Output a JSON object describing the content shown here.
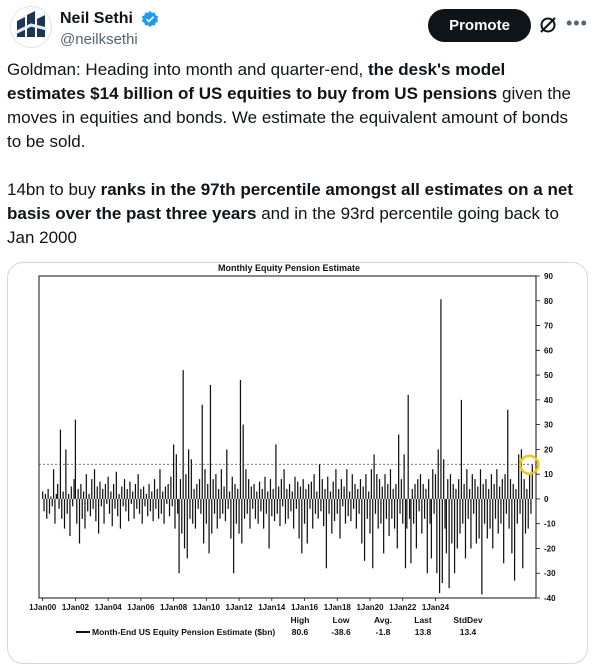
{
  "author": {
    "name": "Neil Sethi",
    "handle": "@neilksethi",
    "avatar_icon": "logo-avatar"
  },
  "actions": {
    "promote_label": "Promote",
    "grok_icon": "grok-icon",
    "more_icon": "more-icon"
  },
  "tweet": {
    "p1_a": "Goldman: Heading into month and quarter-end, ",
    "p1_b": "the desk's model estimates $14 billion of US equities to buy from US pensions",
    "p1_c": " given the moves in equities and bonds. We estimate the equivalent amount of bonds to be sold.",
    "p2_a": "14bn to buy ",
    "p2_b": "ranks in the 97th percentile amongst all estimates on a net basis over the past three years",
    "p2_c": " and in the 93rd percentile going back to Jan 2000"
  },
  "chart_data": {
    "type": "bar",
    "title": "Monthly Equity Pension Estimate",
    "ylim": [
      -40,
      90
    ],
    "yticks": [
      "90",
      "80",
      "70",
      "60",
      "50",
      "40",
      "30",
      "20",
      "10",
      "0",
      "-10",
      "-20",
      "-30",
      "-40"
    ],
    "x_tick_labels": [
      "1Jan00",
      "1Jan02",
      "1Jan04",
      "1Jan06",
      "1Jan08",
      "1Jan10",
      "1Jan12",
      "1Jan14",
      "1Jan16",
      "1Jan18",
      "1Jan20",
      "1Jan22",
      "1Jan24"
    ],
    "x_start": "2000-01",
    "reference_line": 14,
    "legend": {
      "series_label": "Month-End US Equity Pension Estimate ($bn)",
      "stats": [
        {
          "label": "High",
          "value": "80.6"
        },
        {
          "label": "Low",
          "value": "-38.6"
        },
        {
          "label": "Avg.",
          "value": "-1.8"
        },
        {
          "label": "Last",
          "value": "13.8"
        },
        {
          "label": "StdDev",
          "value": "13.4"
        }
      ]
    },
    "colors": {
      "bars": "#111111",
      "highlight": "#f2c511"
    },
    "series": [
      {
        "values": [
          3,
          -5,
          2,
          -8,
          4,
          -6,
          1,
          -3,
          12,
          -10,
          2,
          6,
          -4,
          28,
          -8,
          3,
          -12,
          20,
          -6,
          2,
          -15,
          5,
          -3,
          8,
          32,
          -10,
          4,
          -18,
          6,
          -8,
          3,
          -12,
          10,
          -5,
          2,
          -7,
          8,
          -4,
          12,
          -9,
          5,
          -14,
          7,
          -3,
          4,
          -10,
          6,
          -2,
          9,
          -6,
          3,
          -11,
          6,
          -4,
          11,
          -7,
          2,
          -12,
          5,
          -3,
          8,
          -5,
          4,
          -9,
          7,
          -2,
          3,
          -8,
          6,
          -4,
          10,
          -6,
          4,
          -10,
          5,
          -3,
          2,
          -7,
          6,
          -5,
          3,
          -9,
          8,
          -4,
          4,
          -8,
          12,
          -6,
          3,
          -10,
          5,
          -2,
          6,
          -7,
          9,
          -3,
          22,
          -12,
          18,
          -6,
          -30,
          8,
          -14,
          52,
          -20,
          10,
          -24,
          20,
          -8,
          16,
          -10,
          4,
          -12,
          6,
          -4,
          8,
          -6,
          38,
          -18,
          12,
          -10,
          6,
          -22,
          46,
          -14,
          8,
          -6,
          10,
          -12,
          4,
          -8,
          12,
          -6,
          5,
          -9,
          20,
          -4,
          3,
          -16,
          9,
          -30,
          6,
          -10,
          4,
          -14,
          48,
          -18,
          30,
          -8,
          12,
          -6,
          8,
          -12,
          5,
          -4,
          6,
          -8,
          3,
          -10,
          7,
          -5,
          4,
          -12,
          9,
          -6,
          3,
          -20,
          8,
          -7,
          4,
          -9,
          22,
          -6,
          5,
          -11,
          8,
          -3,
          12,
          -10,
          4,
          -8,
          6,
          -5,
          3,
          -12,
          9,
          -4,
          7,
          -16,
          5,
          -22,
          8,
          -10,
          4,
          -18,
          6,
          -4,
          7,
          -12,
          10,
          -6,
          3,
          -8,
          14,
          -5,
          8,
          -11,
          4,
          -28,
          9,
          -6,
          3,
          -14,
          7,
          -9,
          12,
          -6,
          4,
          -16,
          8,
          -3,
          5,
          -10,
          12,
          -7,
          3,
          -9,
          10,
          -4,
          6,
          -12,
          4,
          -6,
          8,
          -18,
          5,
          -25,
          10,
          -8,
          3,
          -14,
          12,
          -28,
          18,
          -6,
          10,
          -12,
          8,
          -10,
          5,
          -22,
          10,
          -8,
          6,
          -15,
          12,
          -8,
          4,
          -12,
          6,
          -20,
          26,
          -6,
          8,
          -10,
          18,
          -28,
          -12,
          42,
          -8,
          -26,
          4,
          -10,
          6,
          -20,
          8,
          -5,
          10,
          -14,
          6,
          -8,
          4,
          -30,
          8,
          -10,
          -24,
          12,
          -6,
          10,
          -30,
          20,
          -38,
          80.6,
          -34,
          16,
          -12,
          -22,
          8,
          -36,
          10,
          -18,
          6,
          -30,
          4,
          -20,
          8,
          -14,
          40,
          -10,
          6,
          -24,
          12,
          -8,
          4,
          -20,
          10,
          -6,
          8,
          -18,
          5,
          -16,
          12,
          -38.6,
          6,
          -10,
          8,
          -16,
          4,
          -12,
          10,
          -20,
          6,
          -8,
          12,
          -14,
          5,
          -10,
          8,
          -26,
          10,
          -6,
          36,
          -12,
          8,
          -22,
          6,
          -33,
          4,
          -10,
          18,
          -6,
          20,
          -28,
          8,
          -14,
          4,
          -12,
          10,
          -6,
          13.8
        ]
      }
    ]
  }
}
